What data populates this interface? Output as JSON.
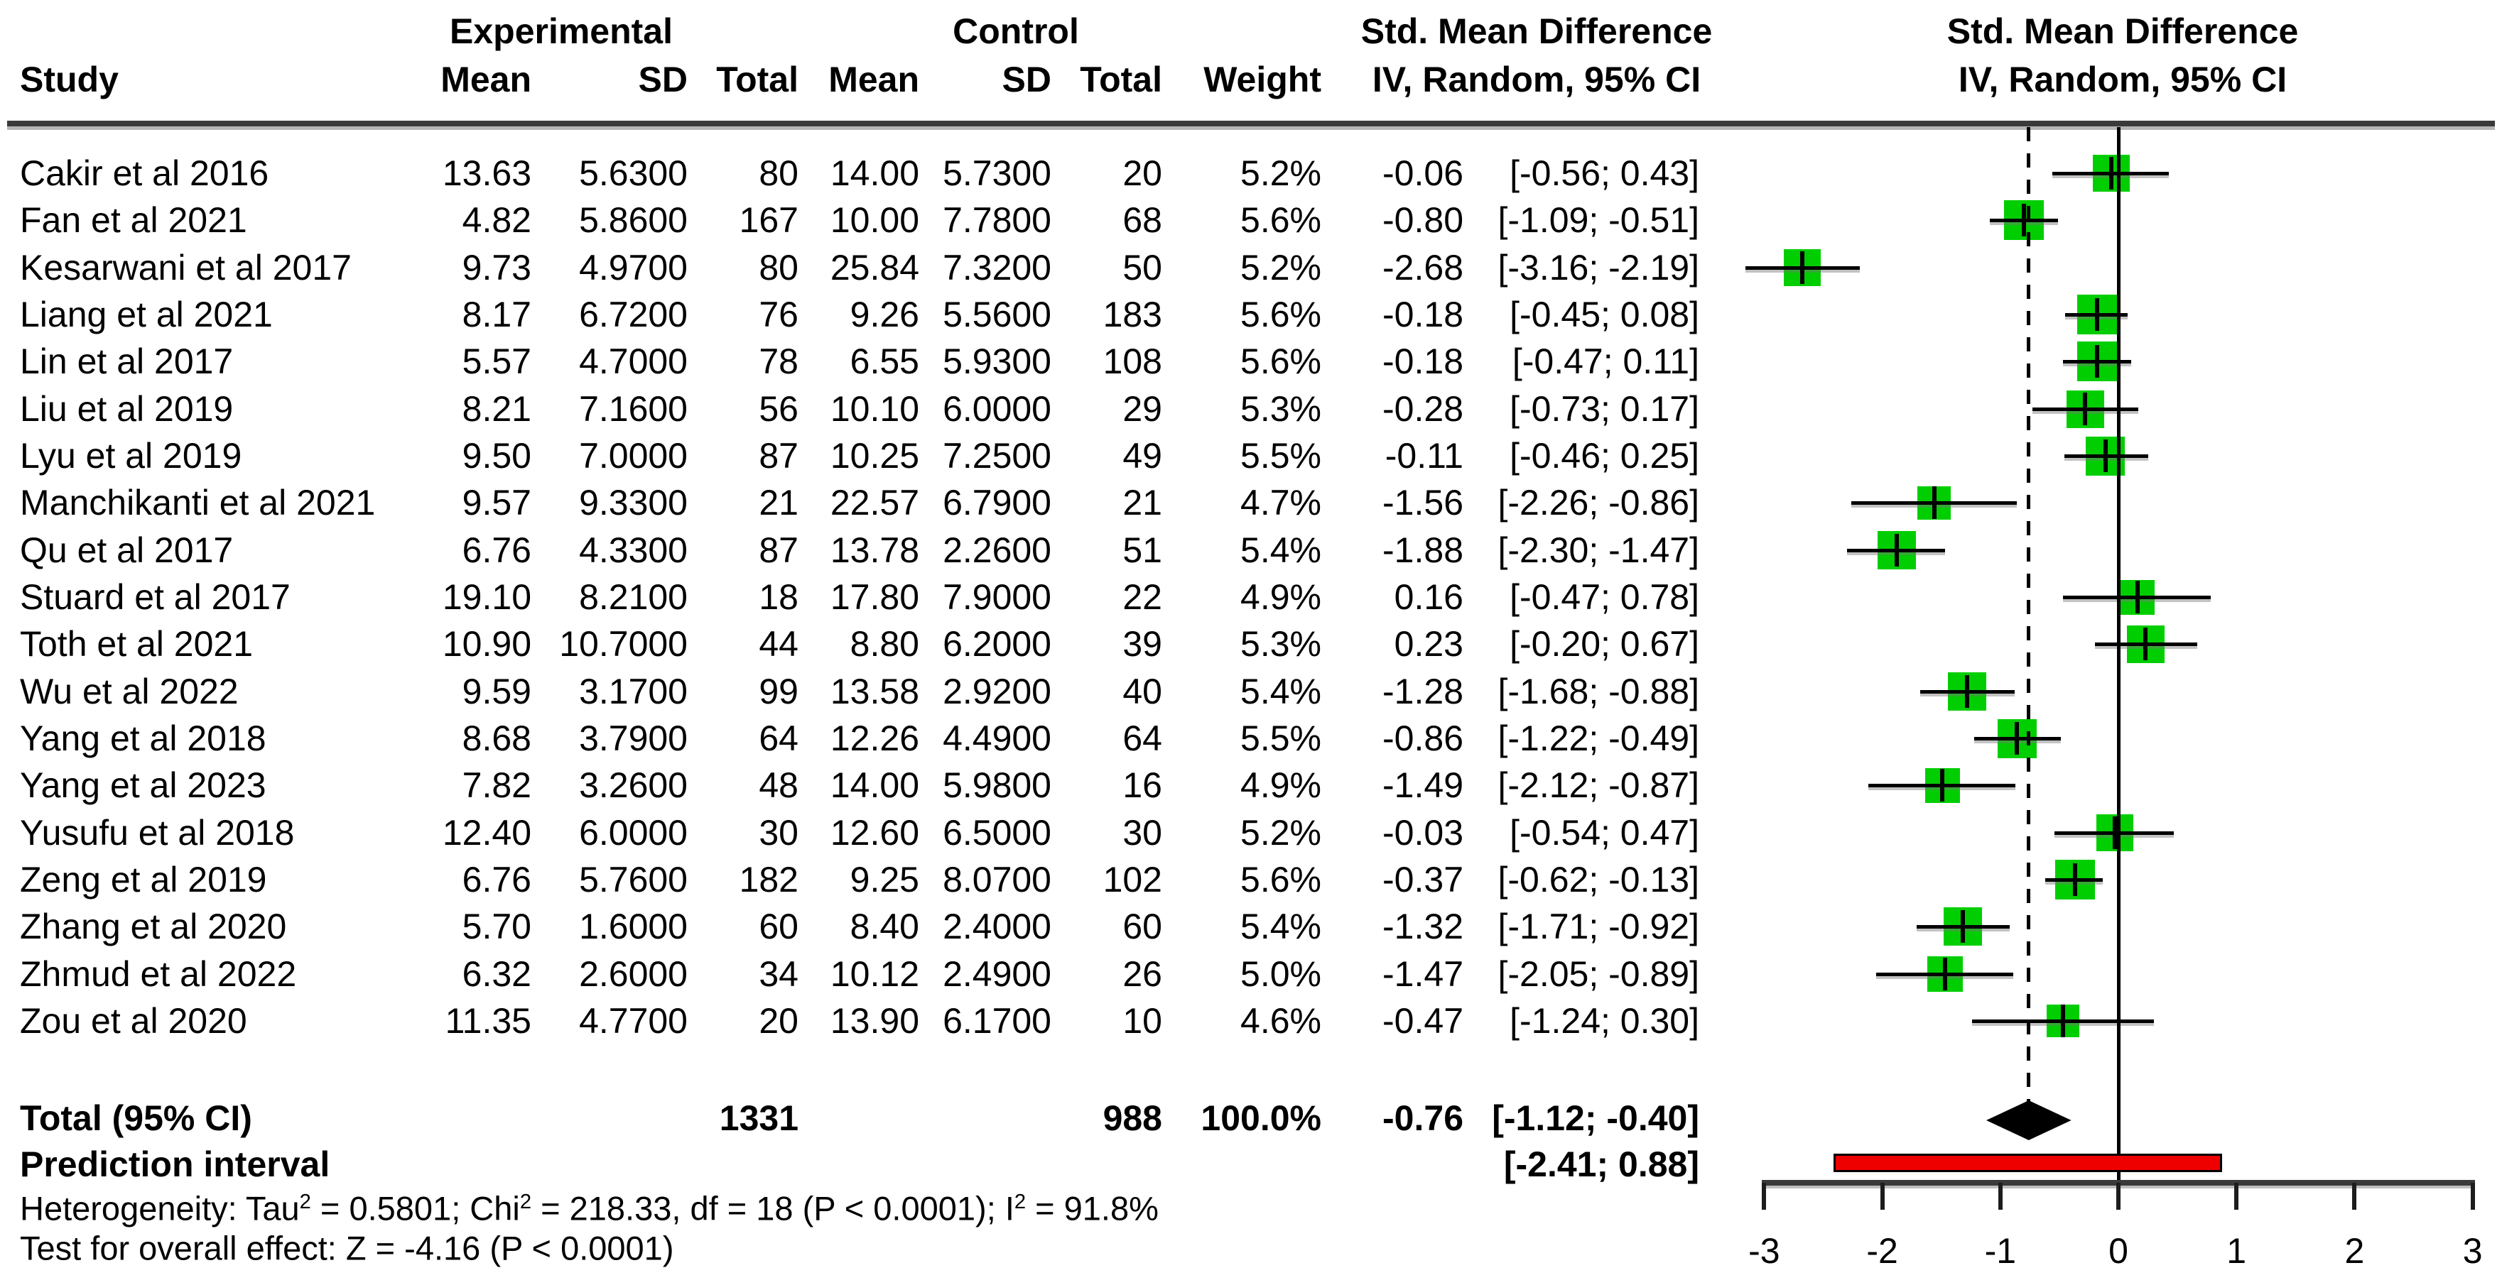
{
  "columns": {
    "study": "Study",
    "group_experimental": "Experimental",
    "group_control": "Control",
    "mean": "Mean",
    "sd": "SD",
    "total": "Total",
    "weight": "Weight",
    "smd_title": "Std. Mean Difference",
    "smd_sub": "IV, Random, 95% CI"
  },
  "chart_data": {
    "type": "forest",
    "effect_measure": "Std. Mean Difference",
    "model": "IV, Random, 95% CI",
    "studies": [
      {
        "name": "Cakir et al 2016",
        "exp_mean": "13.63",
        "exp_sd": "5.6300",
        "exp_total": "80",
        "ctrl_mean": "14.00",
        "ctrl_sd": "5.7300",
        "ctrl_total": "20",
        "weight": "5.2%",
        "weight_pct": 5.2,
        "smd": -0.06,
        "lower": -0.56,
        "upper": 0.43,
        "est_text": "-0.06",
        "ci_text": "[-0.56; 0.43]"
      },
      {
        "name": "Fan et al 2021",
        "exp_mean": "4.82",
        "exp_sd": "5.8600",
        "exp_total": "167",
        "ctrl_mean": "10.00",
        "ctrl_sd": "7.7800",
        "ctrl_total": "68",
        "weight": "5.6%",
        "weight_pct": 5.6,
        "smd": -0.8,
        "lower": -1.09,
        "upper": -0.51,
        "est_text": "-0.80",
        "ci_text": "[-1.09; -0.51]"
      },
      {
        "name": "Kesarwani et al 2017",
        "exp_mean": "9.73",
        "exp_sd": "4.9700",
        "exp_total": "80",
        "ctrl_mean": "25.84",
        "ctrl_sd": "7.3200",
        "ctrl_total": "50",
        "weight": "5.2%",
        "weight_pct": 5.2,
        "smd": -2.68,
        "lower": -3.16,
        "upper": -2.19,
        "est_text": "-2.68",
        "ci_text": "[-3.16; -2.19]"
      },
      {
        "name": "Liang et al 2021",
        "exp_mean": "8.17",
        "exp_sd": "6.7200",
        "exp_total": "76",
        "ctrl_mean": "9.26",
        "ctrl_sd": "5.5600",
        "ctrl_total": "183",
        "weight": "5.6%",
        "weight_pct": 5.6,
        "smd": -0.18,
        "lower": -0.45,
        "upper": 0.08,
        "est_text": "-0.18",
        "ci_text": "[-0.45; 0.08]"
      },
      {
        "name": "Lin et al 2017",
        "exp_mean": "5.57",
        "exp_sd": "4.7000",
        "exp_total": "78",
        "ctrl_mean": "6.55",
        "ctrl_sd": "5.9300",
        "ctrl_total": "108",
        "weight": "5.6%",
        "weight_pct": 5.6,
        "smd": -0.18,
        "lower": -0.47,
        "upper": 0.11,
        "est_text": "-0.18",
        "ci_text": "[-0.47; 0.11]"
      },
      {
        "name": "Liu et al 2019",
        "exp_mean": "8.21",
        "exp_sd": "7.1600",
        "exp_total": "56",
        "ctrl_mean": "10.10",
        "ctrl_sd": "6.0000",
        "ctrl_total": "29",
        "weight": "5.3%",
        "weight_pct": 5.3,
        "smd": -0.28,
        "lower": -0.73,
        "upper": 0.17,
        "est_text": "-0.28",
        "ci_text": "[-0.73; 0.17]"
      },
      {
        "name": "Lyu et al 2019",
        "exp_mean": "9.50",
        "exp_sd": "7.0000",
        "exp_total": "87",
        "ctrl_mean": "10.25",
        "ctrl_sd": "7.2500",
        "ctrl_total": "49",
        "weight": "5.5%",
        "weight_pct": 5.5,
        "smd": -0.11,
        "lower": -0.46,
        "upper": 0.25,
        "est_text": "-0.11",
        "ci_text": "[-0.46; 0.25]"
      },
      {
        "name": "Manchikanti et al 2021",
        "exp_mean": "9.57",
        "exp_sd": "9.3300",
        "exp_total": "21",
        "ctrl_mean": "22.57",
        "ctrl_sd": "6.7900",
        "ctrl_total": "21",
        "weight": "4.7%",
        "weight_pct": 4.7,
        "smd": -1.56,
        "lower": -2.26,
        "upper": -0.86,
        "est_text": "-1.56",
        "ci_text": "[-2.26; -0.86]"
      },
      {
        "name": "Qu et al 2017",
        "exp_mean": "6.76",
        "exp_sd": "4.3300",
        "exp_total": "87",
        "ctrl_mean": "13.78",
        "ctrl_sd": "2.2600",
        "ctrl_total": "51",
        "weight": "5.4%",
        "weight_pct": 5.4,
        "smd": -1.88,
        "lower": -2.3,
        "upper": -1.47,
        "est_text": "-1.88",
        "ci_text": "[-2.30; -1.47]"
      },
      {
        "name": "Stuard et al 2017",
        "exp_mean": "19.10",
        "exp_sd": "8.2100",
        "exp_total": "18",
        "ctrl_mean": "17.80",
        "ctrl_sd": "7.9000",
        "ctrl_total": "22",
        "weight": "4.9%",
        "weight_pct": 4.9,
        "smd": 0.16,
        "lower": -0.47,
        "upper": 0.78,
        "est_text": "0.16",
        "ci_text": "[-0.47; 0.78]"
      },
      {
        "name": "Toth et al 2021",
        "exp_mean": "10.90",
        "exp_sd": "10.7000",
        "exp_total": "44",
        "ctrl_mean": "8.80",
        "ctrl_sd": "6.2000",
        "ctrl_total": "39",
        "weight": "5.3%",
        "weight_pct": 5.3,
        "smd": 0.23,
        "lower": -0.2,
        "upper": 0.67,
        "est_text": "0.23",
        "ci_text": "[-0.20; 0.67]"
      },
      {
        "name": "Wu et al 2022",
        "exp_mean": "9.59",
        "exp_sd": "3.1700",
        "exp_total": "99",
        "ctrl_mean": "13.58",
        "ctrl_sd": "2.9200",
        "ctrl_total": "40",
        "weight": "5.4%",
        "weight_pct": 5.4,
        "smd": -1.28,
        "lower": -1.68,
        "upper": -0.88,
        "est_text": "-1.28",
        "ci_text": "[-1.68; -0.88]"
      },
      {
        "name": "Yang et al 2018",
        "exp_mean": "8.68",
        "exp_sd": "3.7900",
        "exp_total": "64",
        "ctrl_mean": "12.26",
        "ctrl_sd": "4.4900",
        "ctrl_total": "64",
        "weight": "5.5%",
        "weight_pct": 5.5,
        "smd": -0.86,
        "lower": -1.22,
        "upper": -0.49,
        "est_text": "-0.86",
        "ci_text": "[-1.22; -0.49]"
      },
      {
        "name": "Yang et al 2023",
        "exp_mean": "7.82",
        "exp_sd": "3.2600",
        "exp_total": "48",
        "ctrl_mean": "14.00",
        "ctrl_sd": "5.9800",
        "ctrl_total": "16",
        "weight": "4.9%",
        "weight_pct": 4.9,
        "smd": -1.49,
        "lower": -2.12,
        "upper": -0.87,
        "est_text": "-1.49",
        "ci_text": "[-2.12; -0.87]"
      },
      {
        "name": "Yusufu et al 2018",
        "exp_mean": "12.40",
        "exp_sd": "6.0000",
        "exp_total": "30",
        "ctrl_mean": "12.60",
        "ctrl_sd": "6.5000",
        "ctrl_total": "30",
        "weight": "5.2%",
        "weight_pct": 5.2,
        "smd": -0.03,
        "lower": -0.54,
        "upper": 0.47,
        "est_text": "-0.03",
        "ci_text": "[-0.54; 0.47]"
      },
      {
        "name": "Zeng et al 2019",
        "exp_mean": "6.76",
        "exp_sd": "5.7600",
        "exp_total": "182",
        "ctrl_mean": "9.25",
        "ctrl_sd": "8.0700",
        "ctrl_total": "102",
        "weight": "5.6%",
        "weight_pct": 5.6,
        "smd": -0.37,
        "lower": -0.62,
        "upper": -0.13,
        "est_text": "-0.37",
        "ci_text": "[-0.62; -0.13]"
      },
      {
        "name": "Zhang et al 2020",
        "exp_mean": "5.70",
        "exp_sd": "1.6000",
        "exp_total": "60",
        "ctrl_mean": "8.40",
        "ctrl_sd": "2.4000",
        "ctrl_total": "60",
        "weight": "5.4%",
        "weight_pct": 5.4,
        "smd": -1.32,
        "lower": -1.71,
        "upper": -0.92,
        "est_text": "-1.32",
        "ci_text": "[-1.71; -0.92]"
      },
      {
        "name": "Zhmud et al 2022",
        "exp_mean": "6.32",
        "exp_sd": "2.6000",
        "exp_total": "34",
        "ctrl_mean": "10.12",
        "ctrl_sd": "2.4900",
        "ctrl_total": "26",
        "weight": "5.0%",
        "weight_pct": 5.0,
        "smd": -1.47,
        "lower": -2.05,
        "upper": -0.89,
        "est_text": "-1.47",
        "ci_text": "[-2.05; -0.89]"
      },
      {
        "name": "Zou et al 2020",
        "exp_mean": "11.35",
        "exp_sd": "4.7700",
        "exp_total": "20",
        "ctrl_mean": "13.90",
        "ctrl_sd": "6.1700",
        "ctrl_total": "10",
        "weight": "4.6%",
        "weight_pct": 4.6,
        "smd": -0.47,
        "lower": -1.24,
        "upper": 0.3,
        "est_text": "-0.47",
        "ci_text": "[-1.24; 0.30]"
      }
    ],
    "total": {
      "label": "Total (95% CI)",
      "exp_total": "1331",
      "ctrl_total": "988",
      "weight": "100.0%",
      "smd": -0.76,
      "lower": -1.12,
      "upper": -0.4,
      "est_text": "-0.76",
      "ci_text": "[-1.12; -0.40]"
    },
    "prediction": {
      "label": "Prediction interval",
      "lower": -2.41,
      "upper": 0.88,
      "ci_text": "[-2.41; 0.88]"
    },
    "heterogeneity": {
      "seg1": "Heterogeneity: Tau",
      "sup": "2",
      "seg2": " = 0.5801; Chi",
      "seg3": " = 218.33, df = 18 (P < 0.0001); I",
      "seg4": " = 91.8%"
    },
    "overall_test": "Test for overall effect: Z = -4.16 (P < 0.0001)",
    "axis": {
      "min": -3,
      "max": 3,
      "ticks": [
        -3,
        -2,
        -1,
        0,
        1,
        2,
        3
      ],
      "tick_labels": [
        "-3",
        "-2",
        "-1",
        "0",
        "1",
        "2",
        "3"
      ]
    },
    "colors": {
      "square": "#00CE00",
      "diamond": "#000000",
      "prediction_bar": "#EE0000",
      "ci_line": "#000000",
      "axis_line": "#3a3a3a",
      "background": "#ffffff"
    }
  }
}
